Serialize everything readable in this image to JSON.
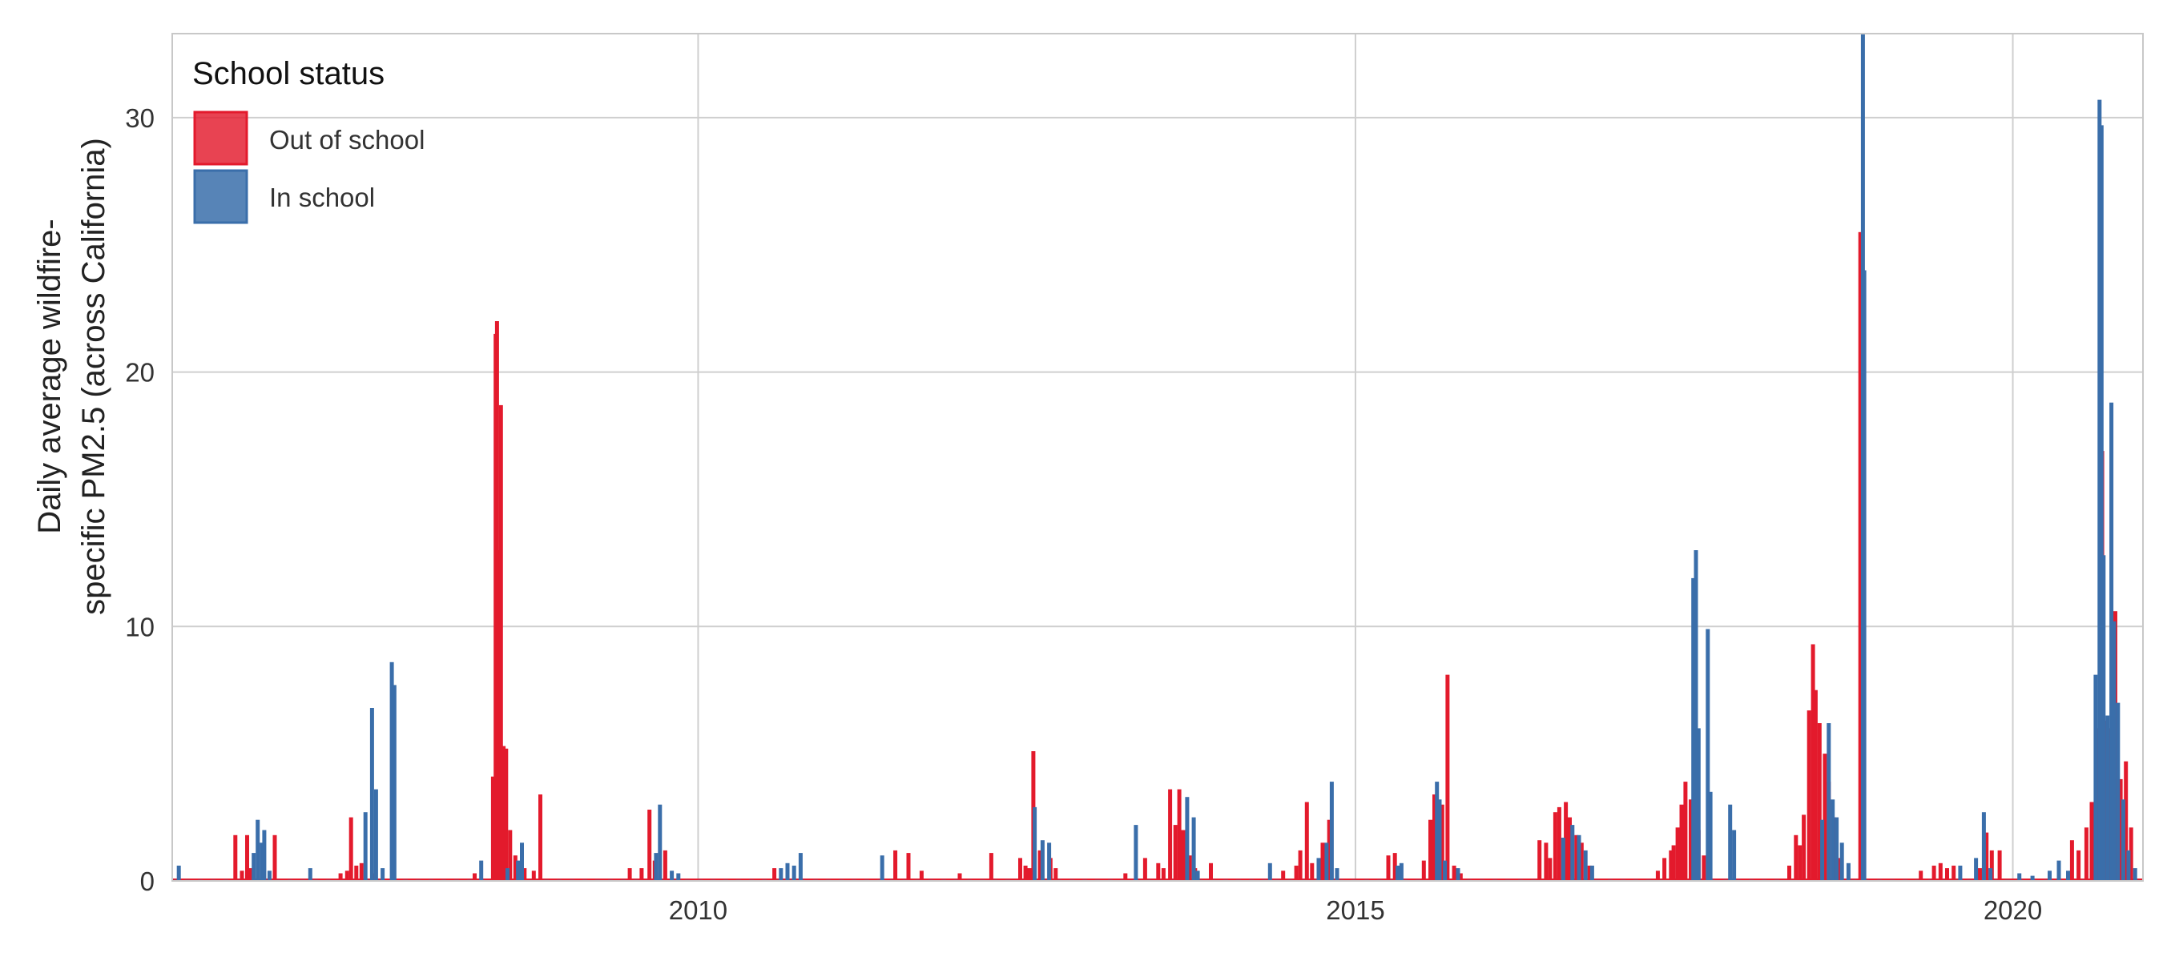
{
  "chart_data": {
    "type": "bar",
    "title": "",
    "xlabel": "",
    "ylabel_lines": [
      "Daily average wildfire-",
      "specific PM2.5 (across California)"
    ],
    "x_unit": "year",
    "xlim": [
      2006.0,
      2020.99
    ],
    "ylim": [
      0,
      33.3
    ],
    "xticks": [
      2010,
      2015,
      2020
    ],
    "yticks": [
      0,
      10,
      20,
      30
    ],
    "grid": true,
    "legend": {
      "title": "School status",
      "position": "top-left",
      "items": [
        {
          "label": "Out of school",
          "color": "#e31a2c"
        },
        {
          "label": "In school",
          "color": "#3a6eaa"
        }
      ]
    },
    "series": [
      {
        "name": "Out of school",
        "color": "#e31a2c",
        "points": [
          [
            2006.48,
            1.8
          ],
          [
            2006.53,
            0.4
          ],
          [
            2006.57,
            1.8
          ],
          [
            2006.6,
            0.5
          ],
          [
            2006.78,
            1.8
          ],
          [
            2007.28,
            0.3
          ],
          [
            2007.33,
            0.4
          ],
          [
            2007.36,
            2.5
          ],
          [
            2007.4,
            0.6
          ],
          [
            2007.44,
            0.7
          ],
          [
            2007.54,
            0.3
          ],
          [
            2008.3,
            0.3
          ],
          [
            2008.44,
            4.1
          ],
          [
            2008.46,
            21.5
          ],
          [
            2008.47,
            22.0
          ],
          [
            2008.49,
            13.0
          ],
          [
            2008.5,
            18.7
          ],
          [
            2008.52,
            5.3
          ],
          [
            2008.54,
            5.2
          ],
          [
            2008.57,
            2.0
          ],
          [
            2008.61,
            1.0
          ],
          [
            2008.68,
            0.5
          ],
          [
            2008.75,
            0.4
          ],
          [
            2008.8,
            3.4
          ],
          [
            2009.48,
            0.5
          ],
          [
            2009.57,
            0.5
          ],
          [
            2009.63,
            2.8
          ],
          [
            2009.67,
            0.8
          ],
          [
            2009.75,
            1.2
          ],
          [
            2010.58,
            0.5
          ],
          [
            2011.5,
            1.2
          ],
          [
            2011.6,
            1.1
          ],
          [
            2011.7,
            0.4
          ],
          [
            2011.99,
            0.3
          ],
          [
            2012.23,
            1.1
          ],
          [
            2012.45,
            0.9
          ],
          [
            2012.49,
            0.6
          ],
          [
            2012.52,
            0.5
          ],
          [
            2012.55,
            5.1
          ],
          [
            2012.6,
            1.2
          ],
          [
            2012.68,
            0.9
          ],
          [
            2012.72,
            0.5
          ],
          [
            2013.25,
            0.3
          ],
          [
            2013.4,
            0.9
          ],
          [
            2013.5,
            0.7
          ],
          [
            2013.54,
            0.5
          ],
          [
            2013.59,
            3.6
          ],
          [
            2013.63,
            2.2
          ],
          [
            2013.66,
            3.6
          ],
          [
            2013.69,
            2.0
          ],
          [
            2013.74,
            1.0
          ],
          [
            2013.78,
            0.5
          ],
          [
            2013.9,
            0.7
          ],
          [
            2014.45,
            0.4
          ],
          [
            2014.55,
            0.6
          ],
          [
            2014.58,
            1.2
          ],
          [
            2014.63,
            3.1
          ],
          [
            2014.67,
            0.7
          ],
          [
            2014.75,
            1.5
          ],
          [
            2014.8,
            2.4
          ],
          [
            2015.25,
            1.0
          ],
          [
            2015.3,
            1.1
          ],
          [
            2015.52,
            0.8
          ],
          [
            2015.57,
            2.4
          ],
          [
            2015.6,
            3.4
          ],
          [
            2015.66,
            3.0
          ],
          [
            2015.7,
            8.1
          ],
          [
            2015.75,
            0.6
          ],
          [
            2015.8,
            0.3
          ],
          [
            2016.4,
            1.6
          ],
          [
            2016.45,
            1.5
          ],
          [
            2016.48,
            0.9
          ],
          [
            2016.52,
            2.7
          ],
          [
            2016.55,
            2.9
          ],
          [
            2016.6,
            3.1
          ],
          [
            2016.63,
            2.5
          ],
          [
            2016.68,
            1.8
          ],
          [
            2016.72,
            1.5
          ],
          [
            2016.78,
            0.6
          ],
          [
            2017.3,
            0.4
          ],
          [
            2017.35,
            0.9
          ],
          [
            2017.4,
            1.2
          ],
          [
            2017.42,
            1.4
          ],
          [
            2017.45,
            2.1
          ],
          [
            2017.48,
            3.0
          ],
          [
            2017.51,
            3.9
          ],
          [
            2017.55,
            3.2
          ],
          [
            2017.58,
            2.3
          ],
          [
            2017.61,
            2.0
          ],
          [
            2017.65,
            1.0
          ],
          [
            2018.3,
            0.6
          ],
          [
            2018.35,
            1.8
          ],
          [
            2018.38,
            1.4
          ],
          [
            2018.41,
            2.6
          ],
          [
            2018.45,
            6.7
          ],
          [
            2018.48,
            9.3
          ],
          [
            2018.5,
            7.5
          ],
          [
            2018.53,
            6.2
          ],
          [
            2018.57,
            5.0
          ],
          [
            2018.6,
            3.9
          ],
          [
            2018.64,
            2.5
          ],
          [
            2018.68,
            0.9
          ],
          [
            2018.84,
            25.5
          ],
          [
            2018.85,
            19.5
          ],
          [
            2019.3,
            0.4
          ],
          [
            2019.4,
            0.6
          ],
          [
            2019.45,
            0.7
          ],
          [
            2019.5,
            0.5
          ],
          [
            2019.55,
            0.6
          ],
          [
            2019.75,
            0.5
          ],
          [
            2019.8,
            1.9
          ],
          [
            2019.84,
            1.2
          ],
          [
            2019.9,
            1.2
          ],
          [
            2020.45,
            1.6
          ],
          [
            2020.5,
            1.2
          ],
          [
            2020.56,
            2.1
          ],
          [
            2020.6,
            3.1
          ],
          [
            2020.65,
            6.0
          ],
          [
            2020.68,
            16.9
          ],
          [
            2020.71,
            6.3
          ],
          [
            2020.74,
            6.0
          ],
          [
            2020.78,
            10.6
          ],
          [
            2020.82,
            4.0
          ],
          [
            2020.86,
            4.7
          ],
          [
            2020.9,
            2.1
          ]
        ]
      },
      {
        "name": "In school",
        "color": "#3a6eaa",
        "points": [
          [
            2006.05,
            0.6
          ],
          [
            2006.62,
            1.1
          ],
          [
            2006.65,
            2.4
          ],
          [
            2006.68,
            1.5
          ],
          [
            2006.7,
            2.0
          ],
          [
            2006.74,
            0.4
          ],
          [
            2007.05,
            0.5
          ],
          [
            2007.47,
            2.7
          ],
          [
            2007.52,
            6.8
          ],
          [
            2007.55,
            3.6
          ],
          [
            2007.6,
            0.5
          ],
          [
            2007.67,
            8.6
          ],
          [
            2007.69,
            7.7
          ],
          [
            2008.35,
            0.8
          ],
          [
            2008.55,
            0.5
          ],
          [
            2008.63,
            0.8
          ],
          [
            2008.66,
            1.5
          ],
          [
            2009.68,
            1.1
          ],
          [
            2009.71,
            3.0
          ],
          [
            2009.8,
            0.4
          ],
          [
            2009.85,
            0.3
          ],
          [
            2010.63,
            0.5
          ],
          [
            2010.68,
            0.7
          ],
          [
            2010.73,
            0.6
          ],
          [
            2010.78,
            1.1
          ],
          [
            2011.4,
            1.0
          ],
          [
            2012.56,
            2.9
          ],
          [
            2012.62,
            1.6
          ],
          [
            2012.67,
            1.5
          ],
          [
            2013.33,
            2.2
          ],
          [
            2013.72,
            3.3
          ],
          [
            2013.77,
            2.5
          ],
          [
            2013.8,
            0.4
          ],
          [
            2014.35,
            0.7
          ],
          [
            2014.72,
            0.9
          ],
          [
            2014.78,
            1.5
          ],
          [
            2014.82,
            3.9
          ],
          [
            2014.86,
            0.5
          ],
          [
            2015.32,
            0.6
          ],
          [
            2015.35,
            0.7
          ],
          [
            2015.62,
            3.9
          ],
          [
            2015.64,
            3.2
          ],
          [
            2015.68,
            0.8
          ],
          [
            2015.78,
            0.5
          ],
          [
            2016.58,
            1.7
          ],
          [
            2016.65,
            2.2
          ],
          [
            2016.7,
            1.8
          ],
          [
            2016.75,
            1.2
          ],
          [
            2016.8,
            0.6
          ],
          [
            2017.57,
            11.9
          ],
          [
            2017.59,
            13.0
          ],
          [
            2017.61,
            6.0
          ],
          [
            2017.68,
            9.9
          ],
          [
            2017.7,
            3.5
          ],
          [
            2017.85,
            3.0
          ],
          [
            2017.88,
            2.0
          ],
          [
            2018.55,
            2.4
          ],
          [
            2018.6,
            6.2
          ],
          [
            2018.63,
            3.2
          ],
          [
            2018.66,
            2.5
          ],
          [
            2018.7,
            1.5
          ],
          [
            2018.75,
            0.7
          ],
          [
            2018.86,
            33.3
          ],
          [
            2018.87,
            24.0
          ],
          [
            2019.6,
            0.6
          ],
          [
            2019.72,
            0.9
          ],
          [
            2019.78,
            2.7
          ],
          [
            2019.83,
            0.5
          ],
          [
            2020.05,
            0.3
          ],
          [
            2020.15,
            0.2
          ],
          [
            2020.28,
            0.4
          ],
          [
            2020.35,
            0.8
          ],
          [
            2020.42,
            0.4
          ],
          [
            2020.63,
            8.1
          ],
          [
            2020.66,
            30.7
          ],
          [
            2020.675,
            29.7
          ],
          [
            2020.69,
            12.8
          ],
          [
            2020.72,
            6.5
          ],
          [
            2020.75,
            18.8
          ],
          [
            2020.77,
            10.2
          ],
          [
            2020.8,
            7.0
          ],
          [
            2020.84,
            3.2
          ],
          [
            2020.88,
            1.2
          ],
          [
            2020.93,
            0.5
          ]
        ]
      }
    ]
  }
}
